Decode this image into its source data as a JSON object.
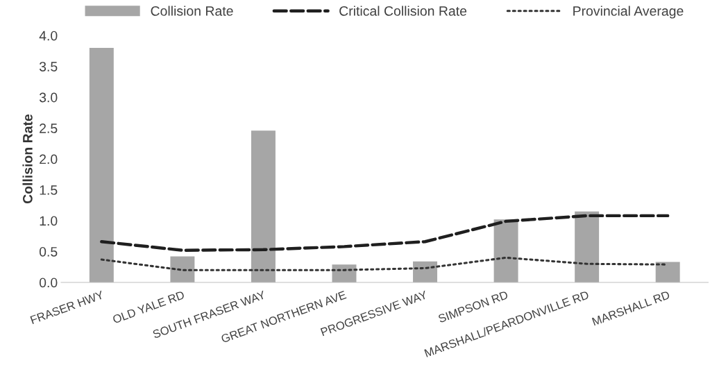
{
  "chart_data": {
    "type": "bar",
    "ylabel": "Collision Rate",
    "categories": [
      "FRASER HWY",
      "OLD YALE RD",
      "SOUTH FRASER WAY",
      "GREAT NORTHERN AVE",
      "PROGRESSIVE WAY",
      "SIMPSON RD",
      "MARSHALL/PEARDONVILLE RD",
      "MARSHALL RD"
    ],
    "series": [
      {
        "name": "Collision Rate",
        "color": "#a6a6a6",
        "values": [
          3.8,
          0.42,
          2.46,
          0.29,
          0.34,
          1.02,
          1.15,
          0.33
        ]
      },
      {
        "name": "Critical Collision Rate",
        "type": "line",
        "line_style": "dashed",
        "color": "#1f1f1f",
        "values": [
          0.66,
          0.52,
          0.53,
          0.58,
          0.66,
          0.99,
          1.08,
          1.08
        ]
      },
      {
        "name": "Provincial Average",
        "type": "line",
        "line_style": "dotted",
        "color": "#333333",
        "values": [
          0.37,
          0.2,
          0.2,
          0.2,
          0.23,
          0.4,
          0.3,
          0.29
        ]
      }
    ],
    "ylim": [
      0,
      4.0
    ],
    "yticks": [
      {
        "value": 0,
        "label": "0.0"
      },
      {
        "value": 0.5,
        "label": "0.5"
      },
      {
        "value": 1.0,
        "label": "1.0"
      },
      {
        "value": 1.5,
        "label": "1.5"
      },
      {
        "value": 2.0,
        "label": "2.0"
      },
      {
        "value": 2.5,
        "label": "2.5"
      },
      {
        "value": 3.0,
        "label": "3.0"
      },
      {
        "value": 3.5,
        "label": "3.5"
      },
      {
        "value": 4.0,
        "label": "4.0"
      }
    ],
    "grid": false,
    "legend": "top"
  }
}
